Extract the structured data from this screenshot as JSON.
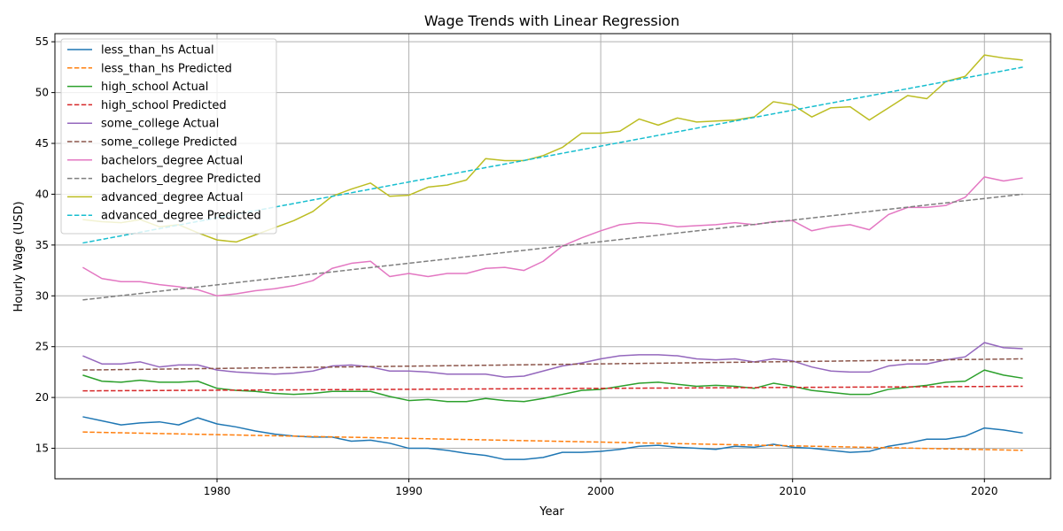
{
  "chart_data": {
    "type": "line",
    "title": "Wage Trends with Linear Regression",
    "xlabel": "Year",
    "ylabel": "Hourly Wage (USD)",
    "xlim": [
      1971.55,
      2023.45
    ],
    "ylim": [
      12.0,
      55.8
    ],
    "xticks": [
      1980,
      1990,
      2000,
      2010,
      2020
    ],
    "yticks": [
      15,
      20,
      25,
      30,
      35,
      40,
      45,
      50,
      55
    ],
    "grid": true,
    "legend_position": "top-left",
    "x": [
      1973,
      1974,
      1975,
      1976,
      1977,
      1978,
      1979,
      1980,
      1981,
      1982,
      1983,
      1984,
      1985,
      1986,
      1987,
      1988,
      1989,
      1990,
      1991,
      1992,
      1993,
      1994,
      1995,
      1996,
      1997,
      1998,
      1999,
      2000,
      2001,
      2002,
      2003,
      2004,
      2005,
      2006,
      2007,
      2008,
      2009,
      2010,
      2011,
      2012,
      2013,
      2014,
      2015,
      2016,
      2017,
      2018,
      2019,
      2020,
      2021,
      2022
    ],
    "series": [
      {
        "name": "less_than_hs Actual",
        "color": "#1f77b4",
        "dashed": false,
        "values": [
          18.1,
          17.7,
          17.3,
          17.5,
          17.6,
          17.3,
          18.0,
          17.4,
          17.1,
          16.7,
          16.4,
          16.2,
          16.1,
          16.1,
          15.7,
          15.8,
          15.5,
          15.0,
          15.0,
          14.8,
          14.5,
          14.3,
          13.9,
          13.9,
          14.1,
          14.6,
          14.6,
          14.7,
          14.9,
          15.2,
          15.3,
          15.1,
          15.0,
          14.9,
          15.2,
          15.1,
          15.4,
          15.1,
          15.0,
          14.8,
          14.6,
          14.7,
          15.2,
          15.5,
          15.9,
          15.9,
          16.2,
          17.0,
          16.8,
          16.5
        ]
      },
      {
        "name": "less_than_hs Predicted",
        "color": "#ff7f0e",
        "dashed": true,
        "linear": [
          16.6,
          14.8
        ]
      },
      {
        "name": "high_school Actual",
        "color": "#2ca02c",
        "dashed": false,
        "values": [
          22.2,
          21.6,
          21.5,
          21.7,
          21.5,
          21.5,
          21.6,
          20.9,
          20.7,
          20.6,
          20.4,
          20.3,
          20.4,
          20.6,
          20.6,
          20.6,
          20.1,
          19.7,
          19.8,
          19.6,
          19.6,
          19.9,
          19.7,
          19.6,
          19.9,
          20.3,
          20.7,
          20.8,
          21.1,
          21.4,
          21.5,
          21.3,
          21.1,
          21.2,
          21.1,
          20.9,
          21.4,
          21.1,
          20.7,
          20.5,
          20.3,
          20.3,
          20.8,
          21.0,
          21.2,
          21.5,
          21.6,
          22.7,
          22.2,
          21.9
        ]
      },
      {
        "name": "high_school Predicted",
        "color": "#d62728",
        "dashed": true,
        "linear": [
          20.65,
          21.1
        ]
      },
      {
        "name": "some_college Actual",
        "color": "#9467bd",
        "dashed": false,
        "values": [
          24.1,
          23.3,
          23.3,
          23.5,
          23.0,
          23.2,
          23.2,
          22.7,
          22.5,
          22.4,
          22.3,
          22.4,
          22.6,
          23.1,
          23.2,
          23.0,
          22.6,
          22.6,
          22.5,
          22.3,
          22.3,
          22.3,
          22.0,
          22.1,
          22.6,
          23.1,
          23.4,
          23.8,
          24.1,
          24.2,
          24.2,
          24.1,
          23.8,
          23.7,
          23.8,
          23.5,
          23.8,
          23.6,
          23.0,
          22.6,
          22.5,
          22.5,
          23.1,
          23.3,
          23.3,
          23.7,
          24.0,
          25.4,
          24.9,
          24.8
        ]
      },
      {
        "name": "some_college Predicted",
        "color": "#8c564b",
        "dashed": true,
        "linear": [
          22.7,
          23.8
        ]
      },
      {
        "name": "bachelors_degree Actual",
        "color": "#e377c2",
        "dashed": false,
        "values": [
          32.8,
          31.7,
          31.4,
          31.4,
          31.1,
          30.9,
          30.6,
          30.0,
          30.2,
          30.5,
          30.7,
          31.0,
          31.5,
          32.7,
          33.2,
          33.4,
          31.9,
          32.2,
          31.9,
          32.2,
          32.2,
          32.7,
          32.8,
          32.5,
          33.4,
          34.9,
          35.7,
          36.4,
          37.0,
          37.2,
          37.1,
          36.8,
          36.9,
          37.0,
          37.2,
          37.0,
          37.3,
          37.4,
          36.4,
          36.8,
          37.0,
          36.5,
          38.0,
          38.7,
          38.7,
          38.9,
          39.7,
          41.7,
          41.3,
          41.6
        ]
      },
      {
        "name": "bachelors_degree Predicted",
        "color": "#7f7f7f",
        "dashed": true,
        "linear": [
          29.6,
          40.0
        ]
      },
      {
        "name": "advanced_degree Actual",
        "color": "#bcbd22",
        "dashed": false,
        "values": [
          37.5,
          37.3,
          37.2,
          37.5,
          36.8,
          37.0,
          36.2,
          35.5,
          35.3,
          36.0,
          36.7,
          37.4,
          38.3,
          39.8,
          40.5,
          41.1,
          39.8,
          39.9,
          40.7,
          40.9,
          41.4,
          43.5,
          43.3,
          43.3,
          43.8,
          44.6,
          46.0,
          46.0,
          46.2,
          47.4,
          46.8,
          47.5,
          47.1,
          47.2,
          47.3,
          47.6,
          49.1,
          48.8,
          47.6,
          48.5,
          48.6,
          47.3,
          48.5,
          49.7,
          49.4,
          51.1,
          51.6,
          53.7,
          53.4,
          53.2
        ]
      },
      {
        "name": "advanced_degree Predicted",
        "color": "#17becf",
        "dashed": true,
        "linear": [
          35.2,
          52.5
        ]
      }
    ]
  }
}
